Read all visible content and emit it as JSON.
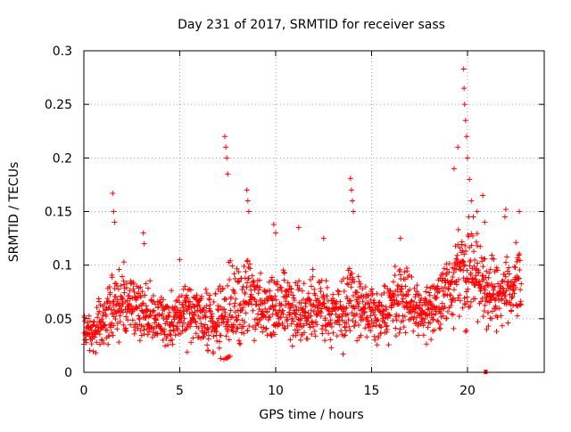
{
  "chart_data": {
    "type": "scatter",
    "title": "Day 231 of 2017, SRMTID for receiver sass",
    "xlabel": "GPS time / hours",
    "ylabel": "SRMTID / TECUs",
    "xlim": [
      0,
      24
    ],
    "ylim": [
      0,
      0.3
    ],
    "xticks": [
      0,
      5,
      10,
      15,
      20
    ],
    "yticks": [
      0,
      0.05,
      0.1,
      0.15,
      0.2,
      0.25,
      0.3
    ],
    "grid": true,
    "marker": "+",
    "series_color": "#ff0000",
    "axis_color": "#000000",
    "grid_color": "#a0a0a0",
    "envelope": {
      "x": [
        0,
        0.5,
        1.0,
        1.5,
        2.0,
        2.5,
        3.0,
        3.5,
        4.0,
        4.5,
        5.0,
        5.5,
        6.0,
        6.5,
        7.0,
        7.5,
        8.0,
        8.5,
        9.0,
        9.5,
        10.0,
        10.5,
        11.0,
        11.5,
        12.0,
        12.5,
        13.0,
        13.5,
        14.0,
        14.5,
        15.0,
        15.5,
        16.0,
        16.5,
        17.0,
        17.5,
        18.0,
        18.5,
        19.0,
        19.5,
        20.0,
        20.5,
        21.0,
        21.5,
        22.0,
        22.5,
        22.8
      ],
      "baseline": [
        0.035,
        0.04,
        0.045,
        0.06,
        0.065,
        0.06,
        0.06,
        0.055,
        0.05,
        0.05,
        0.055,
        0.055,
        0.05,
        0.05,
        0.05,
        0.055,
        0.065,
        0.07,
        0.065,
        0.06,
        0.06,
        0.06,
        0.055,
        0.055,
        0.06,
        0.06,
        0.055,
        0.055,
        0.065,
        0.06,
        0.055,
        0.055,
        0.06,
        0.065,
        0.065,
        0.06,
        0.055,
        0.06,
        0.075,
        0.09,
        0.1,
        0.095,
        0.08,
        0.07,
        0.075,
        0.08,
        0.08
      ],
      "spread": [
        0.012,
        0.014,
        0.018,
        0.025,
        0.025,
        0.022,
        0.022,
        0.02,
        0.018,
        0.018,
        0.02,
        0.02,
        0.02,
        0.02,
        0.022,
        0.03,
        0.03,
        0.03,
        0.025,
        0.022,
        0.025,
        0.022,
        0.02,
        0.02,
        0.02,
        0.02,
        0.02,
        0.022,
        0.025,
        0.022,
        0.018,
        0.018,
        0.02,
        0.022,
        0.022,
        0.02,
        0.018,
        0.02,
        0.025,
        0.03,
        0.035,
        0.03,
        0.025,
        0.025,
        0.025,
        0.025,
        0.025
      ]
    },
    "spikes": [
      {
        "x": 1.5,
        "y": 0.167
      },
      {
        "x": 1.55,
        "y": 0.15
      },
      {
        "x": 1.6,
        "y": 0.14
      },
      {
        "x": 3.1,
        "y": 0.13
      },
      {
        "x": 3.15,
        "y": 0.12
      },
      {
        "x": 5.0,
        "y": 0.105
      },
      {
        "x": 7.35,
        "y": 0.22
      },
      {
        "x": 7.4,
        "y": 0.21
      },
      {
        "x": 7.45,
        "y": 0.2
      },
      {
        "x": 7.5,
        "y": 0.185
      },
      {
        "x": 7.3,
        "y": 0.012
      },
      {
        "x": 7.5,
        "y": 0.014
      },
      {
        "x": 8.5,
        "y": 0.17
      },
      {
        "x": 8.55,
        "y": 0.16
      },
      {
        "x": 8.6,
        "y": 0.15
      },
      {
        "x": 9.9,
        "y": 0.138
      },
      {
        "x": 10.0,
        "y": 0.13
      },
      {
        "x": 11.2,
        "y": 0.135
      },
      {
        "x": 12.5,
        "y": 0.125
      },
      {
        "x": 13.9,
        "y": 0.181
      },
      {
        "x": 13.95,
        "y": 0.17
      },
      {
        "x": 14.0,
        "y": 0.16
      },
      {
        "x": 14.05,
        "y": 0.15
      },
      {
        "x": 16.5,
        "y": 0.125
      },
      {
        "x": 19.3,
        "y": 0.19
      },
      {
        "x": 19.5,
        "y": 0.21
      },
      {
        "x": 19.8,
        "y": 0.283
      },
      {
        "x": 19.82,
        "y": 0.265
      },
      {
        "x": 19.85,
        "y": 0.25
      },
      {
        "x": 19.9,
        "y": 0.235
      },
      {
        "x": 19.95,
        "y": 0.22
      },
      {
        "x": 20.0,
        "y": 0.2
      },
      {
        "x": 20.1,
        "y": 0.18
      },
      {
        "x": 20.2,
        "y": 0.16
      },
      {
        "x": 20.5,
        "y": 0.15
      },
      {
        "x": 20.8,
        "y": 0.165
      },
      {
        "x": 20.9,
        "y": 0.14
      },
      {
        "x": 21.95,
        "y": 0.145
      },
      {
        "x": 22.0,
        "y": 0.152
      },
      {
        "x": 22.7,
        "y": 0.15
      },
      {
        "x": 19.9,
        "y": 0.038
      },
      {
        "x": 21.0,
        "y": 0.04
      }
    ],
    "outliers_square": [
      {
        "x": 20.95,
        "y": 0.0
      }
    ]
  }
}
